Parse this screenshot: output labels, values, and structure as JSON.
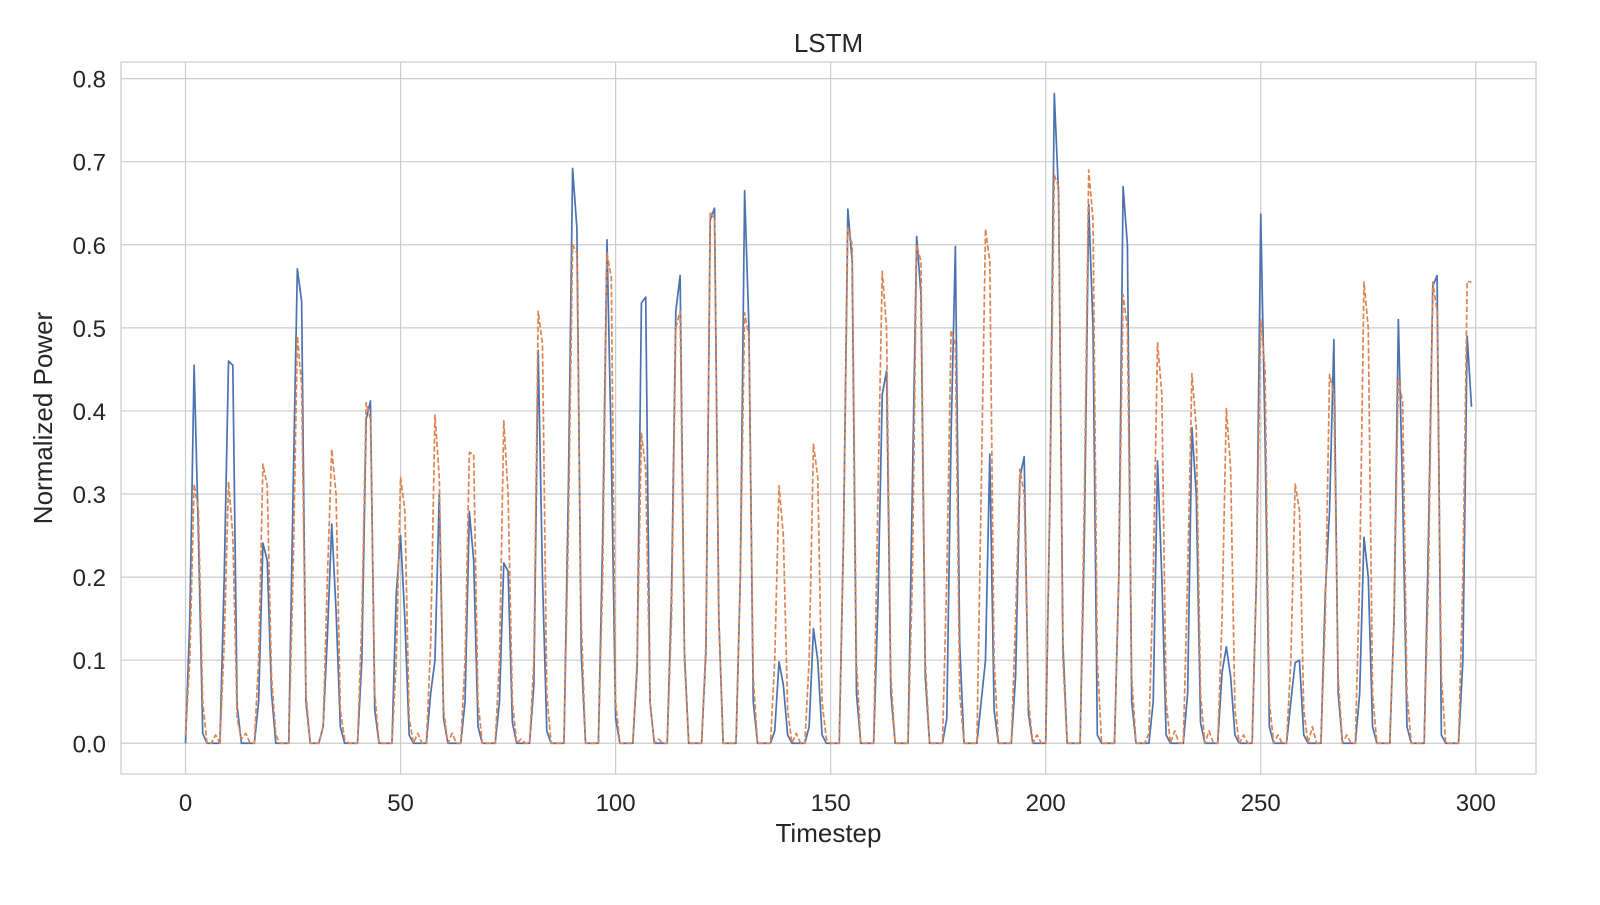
{
  "chart_data": {
    "type": "line",
    "title": "LSTM",
    "xlabel": "Timestep",
    "ylabel": "Normalized Power",
    "xlim": [
      -15,
      314
    ],
    "ylim": [
      -0.037,
      0.82
    ],
    "xticks": [
      0,
      50,
      100,
      150,
      200,
      250,
      300
    ],
    "yticks": [
      0.0,
      0.1,
      0.2,
      0.3,
      0.4,
      0.5,
      0.6,
      0.7,
      0.8
    ],
    "xtick_labels": [
      "0",
      "50",
      "100",
      "150",
      "200",
      "250",
      "300"
    ],
    "ytick_labels": [
      "0.0",
      "0.1",
      "0.2",
      "0.3",
      "0.4",
      "0.5",
      "0.6",
      "0.7",
      "0.8"
    ],
    "grid": true,
    "legend": "none",
    "x": [
      0,
      1,
      2,
      3,
      4,
      5,
      6,
      7,
      8,
      9,
      10,
      11,
      12,
      13,
      14,
      15,
      16,
      17,
      18,
      19,
      20,
      21,
      22,
      23,
      24,
      25,
      26,
      27,
      28,
      29,
      30,
      31,
      32,
      33,
      34,
      35,
      36,
      37,
      38,
      39,
      40,
      41,
      42,
      43,
      44,
      45,
      46,
      47,
      48,
      49,
      50,
      51,
      52,
      53,
      54,
      55,
      56,
      57,
      58,
      59,
      60,
      61,
      62,
      63,
      64,
      65,
      66,
      67,
      68,
      69,
      70,
      71,
      72,
      73,
      74,
      75,
      76,
      77,
      78,
      79,
      80,
      81,
      82,
      83,
      84,
      85,
      86,
      87,
      88,
      89,
      90,
      91,
      92,
      93,
      94,
      95,
      96,
      97,
      98,
      99,
      100,
      101,
      102,
      103,
      104,
      105,
      106,
      107,
      108,
      109,
      110,
      111,
      112,
      113,
      114,
      115,
      116,
      117,
      118,
      119,
      120,
      121,
      122,
      123,
      124,
      125,
      126,
      127,
      128,
      129,
      130,
      131,
      132,
      133,
      134,
      135,
      136,
      137,
      138,
      139,
      140,
      141,
      142,
      143,
      144,
      145,
      146,
      147,
      148,
      149,
      150,
      151,
      152,
      153,
      154,
      155,
      156,
      157,
      158,
      159,
      160,
      161,
      162,
      163,
      164,
      165,
      166,
      167,
      168,
      169,
      170,
      171,
      172,
      173,
      174,
      175,
      176,
      177,
      178,
      179,
      180,
      181,
      182,
      183,
      184,
      185,
      186,
      187,
      188,
      189,
      190,
      191,
      192,
      193,
      194,
      195,
      196,
      197,
      198,
      199,
      200,
      201,
      202,
      203,
      204,
      205,
      206,
      207,
      208,
      209,
      210,
      211,
      212,
      213,
      214,
      215,
      216,
      217,
      218,
      219,
      220,
      221,
      222,
      223,
      224,
      225,
      226,
      227,
      228,
      229,
      230,
      231,
      232,
      233,
      234,
      235,
      236,
      237,
      238,
      239,
      240,
      241,
      242,
      243,
      244,
      245,
      246,
      247,
      248,
      249,
      250,
      251,
      252,
      253,
      254,
      255,
      256,
      257,
      258,
      259,
      260,
      261,
      262,
      263,
      264,
      265,
      266,
      267,
      268,
      269,
      270,
      271,
      272,
      273,
      274,
      275,
      276,
      277,
      278,
      279,
      280,
      281,
      282,
      283,
      284,
      285,
      286,
      287,
      288,
      289,
      290,
      291,
      292,
      293,
      294,
      295,
      296,
      297,
      298,
      299
    ],
    "series": [
      {
        "color": "#4c72b0",
        "style": "solid",
        "values": [
          0.0,
          0.15,
          0.455,
          0.25,
          0.012,
          0.0,
          0.0,
          0.0,
          0.0,
          0.2,
          0.46,
          0.455,
          0.045,
          0.0,
          0.0,
          0.0,
          0.0,
          0.05,
          0.241,
          0.22,
          0.06,
          0.0,
          0.0,
          0.0,
          0.0,
          0.3,
          0.571,
          0.532,
          0.05,
          0.0,
          0.0,
          0.0,
          0.02,
          0.13,
          0.264,
          0.16,
          0.02,
          0.0,
          0.0,
          0.0,
          0.0,
          0.1,
          0.39,
          0.412,
          0.04,
          0.0,
          0.0,
          0.0,
          0.0,
          0.18,
          0.25,
          0.15,
          0.01,
          0.0,
          0.0,
          0.0,
          0.0,
          0.06,
          0.1,
          0.3,
          0.03,
          0.0,
          0.0,
          0.0,
          0.0,
          0.05,
          0.279,
          0.22,
          0.02,
          0.0,
          0.0,
          0.0,
          0.0,
          0.05,
          0.217,
          0.207,
          0.025,
          0.0,
          0.0,
          0.0,
          0.0,
          0.07,
          0.473,
          0.2,
          0.015,
          0.0,
          0.0,
          0.0,
          0.0,
          0.3,
          0.692,
          0.62,
          0.11,
          0.0,
          0.0,
          0.0,
          0.0,
          0.25,
          0.606,
          0.35,
          0.03,
          0.0,
          0.0,
          0.0,
          0.0,
          0.09,
          0.53,
          0.537,
          0.05,
          0.0,
          0.0,
          0.0,
          0.0,
          0.18,
          0.52,
          0.563,
          0.11,
          0.0,
          0.0,
          0.0,
          0.0,
          0.11,
          0.63,
          0.644,
          0.15,
          0.0,
          0.0,
          0.0,
          0.0,
          0.2,
          0.665,
          0.5,
          0.05,
          0.0,
          0.0,
          0.0,
          0.0,
          0.015,
          0.098,
          0.07,
          0.01,
          0.0,
          0.0,
          0.0,
          0.0,
          0.02,
          0.138,
          0.1,
          0.01,
          0.0,
          0.0,
          0.0,
          0.0,
          0.25,
          0.643,
          0.58,
          0.06,
          0.0,
          0.0,
          0.0,
          0.0,
          0.17,
          0.42,
          0.448,
          0.06,
          0.0,
          0.0,
          0.0,
          0.0,
          0.31,
          0.61,
          0.54,
          0.08,
          0.0,
          0.0,
          0.0,
          0.0,
          0.03,
          0.37,
          0.598,
          0.12,
          0.0,
          0.0,
          0.0,
          0.0,
          0.05,
          0.1,
          0.348,
          0.04,
          0.0,
          0.0,
          0.0,
          0.0,
          0.08,
          0.32,
          0.345,
          0.035,
          0.0,
          0.0,
          0.0,
          0.0,
          0.3,
          0.782,
          0.66,
          0.12,
          0.0,
          0.0,
          0.0,
          0.0,
          0.25,
          0.648,
          0.5,
          0.01,
          0.0,
          0.0,
          0.0,
          0.0,
          0.2,
          0.67,
          0.6,
          0.05,
          0.0,
          0.0,
          0.0,
          0.0,
          0.05,
          0.34,
          0.2,
          0.01,
          0.0,
          0.0,
          0.0,
          0.0,
          0.06,
          0.38,
          0.3,
          0.025,
          0.0,
          0.0,
          0.0,
          0.0,
          0.085,
          0.116,
          0.08,
          0.01,
          0.0,
          0.0,
          0.0,
          0.0,
          0.2,
          0.637,
          0.37,
          0.02,
          0.0,
          0.0,
          0.0,
          0.0,
          0.05,
          0.097,
          0.1,
          0.01,
          0.0,
          0.0,
          0.0,
          0.0,
          0.18,
          0.28,
          0.486,
          0.06,
          0.0,
          0.0,
          0.0,
          0.0,
          0.06,
          0.248,
          0.2,
          0.02,
          0.0,
          0.0,
          0.0,
          0.0,
          0.15,
          0.51,
          0.3,
          0.02,
          0.0,
          0.0,
          0.0,
          0.0,
          0.25,
          0.55,
          0.563,
          0.01,
          0.0,
          0.0,
          0.0,
          0.0,
          0.1,
          0.49,
          0.405
        ]
      },
      {
        "color": "#dd8452",
        "style": "dashed",
        "values": [
          0.01,
          0.1,
          0.312,
          0.28,
          0.05,
          0.0,
          0.0,
          0.01,
          0.0,
          0.12,
          0.315,
          0.25,
          0.03,
          0.005,
          0.012,
          0.0,
          0.0,
          0.1,
          0.336,
          0.31,
          0.08,
          0.01,
          0.0,
          0.0,
          0.0,
          0.2,
          0.49,
          0.43,
          0.06,
          0.0,
          0.0,
          0.0,
          0.02,
          0.2,
          0.354,
          0.3,
          0.04,
          0.005,
          0.0,
          0.0,
          0.0,
          0.15,
          0.41,
          0.39,
          0.06,
          0.0,
          0.0,
          0.0,
          0.0,
          0.1,
          0.32,
          0.28,
          0.03,
          0.0,
          0.012,
          0.0,
          0.0,
          0.12,
          0.395,
          0.32,
          0.04,
          0.0,
          0.012,
          0.0,
          0.0,
          0.1,
          0.35,
          0.348,
          0.05,
          0.0,
          0.0,
          0.0,
          0.0,
          0.1,
          0.388,
          0.3,
          0.05,
          0.0,
          0.005,
          0.0,
          0.0,
          0.1,
          0.52,
          0.48,
          0.06,
          0.0,
          0.0,
          0.0,
          0.0,
          0.25,
          0.6,
          0.59,
          0.15,
          0.0,
          0.0,
          0.0,
          0.0,
          0.2,
          0.59,
          0.56,
          0.05,
          0.0,
          0.0,
          0.0,
          0.0,
          0.1,
          0.373,
          0.33,
          0.05,
          0.0,
          0.005,
          0.0,
          0.0,
          0.15,
          0.5,
          0.52,
          0.1,
          0.0,
          0.0,
          0.0,
          0.0,
          0.12,
          0.64,
          0.63,
          0.15,
          0.0,
          0.0,
          0.0,
          0.0,
          0.2,
          0.518,
          0.49,
          0.08,
          0.0,
          0.0,
          0.0,
          0.0,
          0.1,
          0.31,
          0.25,
          0.04,
          0.0,
          0.012,
          0.0,
          0.0,
          0.1,
          0.36,
          0.32,
          0.05,
          0.005,
          0.0,
          0.0,
          0.0,
          0.25,
          0.62,
          0.6,
          0.1,
          0.0,
          0.0,
          0.0,
          0.0,
          0.3,
          0.568,
          0.5,
          0.08,
          0.0,
          0.0,
          0.0,
          0.0,
          0.2,
          0.6,
          0.58,
          0.1,
          0.0,
          0.0,
          0.0,
          0.0,
          0.2,
          0.497,
          0.48,
          0.06,
          0.0,
          0.0,
          0.0,
          0.0,
          0.3,
          0.619,
          0.58,
          0.1,
          0.0,
          0.0,
          0.0,
          0.0,
          0.15,
          0.33,
          0.3,
          0.05,
          0.0,
          0.01,
          0.0,
          0.0,
          0.3,
          0.684,
          0.67,
          0.1,
          0.0,
          0.0,
          0.0,
          0.0,
          0.3,
          0.69,
          0.63,
          0.1,
          0.0,
          0.0,
          0.0,
          0.0,
          0.2,
          0.54,
          0.5,
          0.08,
          0.0,
          0.0,
          0.0,
          0.012,
          0.2,
          0.482,
          0.42,
          0.05,
          0.0,
          0.015,
          0.0,
          0.0,
          0.2,
          0.445,
          0.38,
          0.06,
          0.0,
          0.015,
          0.0,
          0.0,
          0.15,
          0.403,
          0.33,
          0.04,
          0.0,
          0.01,
          0.0,
          0.0,
          0.2,
          0.51,
          0.45,
          0.05,
          0.0,
          0.01,
          0.0,
          0.0,
          0.1,
          0.312,
          0.28,
          0.04,
          0.0,
          0.02,
          0.0,
          0.0,
          0.15,
          0.444,
          0.42,
          0.08,
          0.0,
          0.01,
          0.0,
          0.0,
          0.2,
          0.555,
          0.5,
          0.06,
          0.0,
          0.0,
          0.0,
          0.0,
          0.15,
          0.44,
          0.41,
          0.06,
          0.0,
          0.0,
          0.0,
          0.0,
          0.2,
          0.555,
          0.52,
          0.08,
          0.0,
          0.0,
          0.0,
          0.0,
          0.2,
          0.556,
          0.555
        ]
      }
    ]
  }
}
